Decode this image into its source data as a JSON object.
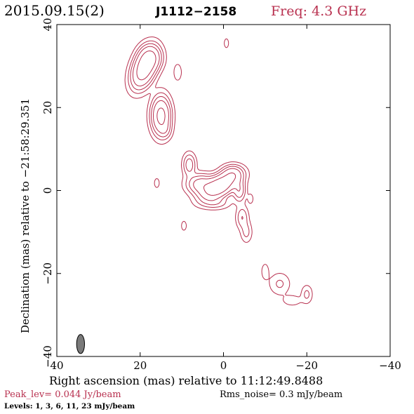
{
  "header": {
    "date": "2015.09.15(2)",
    "source": "J1112−2158",
    "freq": "Freq: 4.3 GHz"
  },
  "footer": {
    "peak": "Peak_lev=  0.044 Jy/beam",
    "rms": "Rms_noise=  0.3 mJy/beam",
    "levels": "Levels:   1,   3,   6,  11,  23 mJy/beam"
  },
  "colors": {
    "contour": "#b8304f",
    "header_accent": "#b8304f",
    "axis": "#000000",
    "beam_fill": "#7a7a7a"
  },
  "chart_data": {
    "type": "contour",
    "xlabel": "Right ascension (mas) relative to 11:12:49.8488",
    "ylabel": "Declination (mas) relative to −21:58:29.351",
    "xlim": [
      40,
      -40
    ],
    "ylim": [
      -40,
      40
    ],
    "xticks": [
      40,
      20,
      0,
      -20,
      -40
    ],
    "yticks": [
      40,
      20,
      0,
      -20,
      -40
    ],
    "xtick_labels": [
      "40",
      "20",
      "0",
      "−20",
      "−40"
    ],
    "ytick_labels": [
      "40",
      "20",
      "0",
      "−20",
      "−40"
    ],
    "contour_levels_mJy": [
      1,
      3,
      6,
      11,
      23
    ],
    "peak_Jy_per_beam": 0.044,
    "rms_noise_mJy_per_beam": 0.3,
    "components": [
      {
        "ra": 19,
        "dec": 29.5,
        "sigma_x": 1.5,
        "sigma_y": 2.8,
        "angle": 20,
        "amp": 40
      },
      {
        "ra": 17.5,
        "dec": 32,
        "sigma_x": 1.5,
        "sigma_y": 1.7,
        "angle": 0,
        "amp": 18
      },
      {
        "ra": 15,
        "dec": 18,
        "sigma_x": 1.3,
        "sigma_y": 2.6,
        "angle": 0,
        "amp": 30
      },
      {
        "ra": 14,
        "dec": 14.5,
        "sigma_x": 0.9,
        "sigma_y": 1.2,
        "angle": 0,
        "amp": 5
      },
      {
        "ra": 11,
        "dec": 28.5,
        "sigma_x": 0.65,
        "sigma_y": 1.4,
        "angle": 0,
        "amp": 2.5
      },
      {
        "ra": -0.7,
        "dec": 35.5,
        "sigma_x": 0.4,
        "sigma_y": 0.85,
        "angle": 0,
        "amp": 2.2
      },
      {
        "ra": 8.2,
        "dec": 6.2,
        "sigma_x": 0.9,
        "sigma_y": 1.6,
        "angle": 0,
        "amp": 9
      },
      {
        "ra": 5.5,
        "dec": 1.5,
        "sigma_x": 1.9,
        "sigma_y": 1.4,
        "angle": 0,
        "amp": 16
      },
      {
        "ra": 1,
        "dec": 1,
        "sigma_x": 2.7,
        "sigma_y": 1.4,
        "angle": -30,
        "amp": 44
      },
      {
        "ra": -2.2,
        "dec": 4,
        "sigma_x": 1.5,
        "sigma_y": 1.2,
        "angle": 0,
        "amp": 15
      },
      {
        "ra": -3.8,
        "dec": 0,
        "sigma_x": 0.9,
        "sigma_y": 1.6,
        "angle": 0,
        "amp": 10
      },
      {
        "ra": 2,
        "dec": -3,
        "sigma_x": 2.1,
        "sigma_y": 0.9,
        "angle": 0,
        "amp": 5
      },
      {
        "ra": -4.5,
        "dec": -6.5,
        "sigma_x": 0.85,
        "sigma_y": 1.6,
        "angle": 0,
        "amp": 6
      },
      {
        "ra": -5.5,
        "dec": -10,
        "sigma_x": 0.8,
        "sigma_y": 1.5,
        "angle": 0,
        "amp": 4
      },
      {
        "ra": -6.5,
        "dec": -2,
        "sigma_x": 0.45,
        "sigma_y": 0.85,
        "angle": 0,
        "amp": 2.2
      },
      {
        "ra": 16,
        "dec": 1.8,
        "sigma_x": 0.45,
        "sigma_y": 0.85,
        "angle": 0,
        "amp": 2.2
      },
      {
        "ra": 9.5,
        "dec": -8.5,
        "sigma_x": 0.45,
        "sigma_y": 0.85,
        "angle": 0,
        "amp": 2.2
      },
      {
        "ra": -10,
        "dec": -19.5,
        "sigma_x": 0.7,
        "sigma_y": 1.5,
        "angle": 0,
        "amp": 1.9
      },
      {
        "ra": -13.5,
        "dec": -22.5,
        "sigma_x": 1.5,
        "sigma_y": 1.6,
        "angle": 0,
        "amp": 3.5
      },
      {
        "ra": -16.5,
        "dec": -26.5,
        "sigma_x": 1.6,
        "sigma_y": 0.9,
        "angle": 0,
        "amp": 2.1
      },
      {
        "ra": -20,
        "dec": -25,
        "sigma_x": 0.8,
        "sigma_y": 1.3,
        "angle": 0,
        "amp": 3.8
      }
    ],
    "beam": {
      "ra": 34.3,
      "dec": -37,
      "major_mas": 4.6,
      "minor_mas": 1.9,
      "pa_deg": 0
    }
  }
}
